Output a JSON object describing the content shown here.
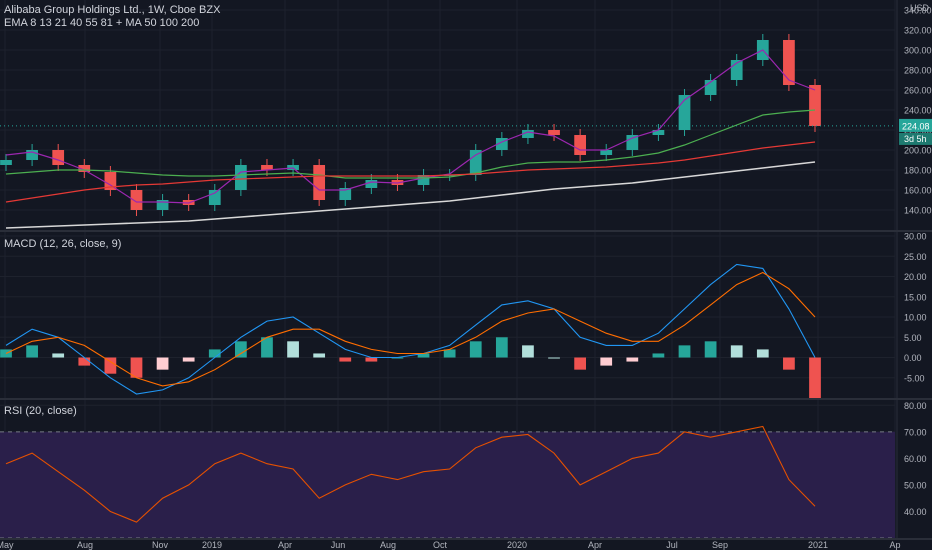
{
  "header": {
    "title": "Alibaba Group Holdings Ltd., 1W, Cboe BZX",
    "indicators": "EMA 8 13 21 40 55 81 + MA 50 100 200",
    "currency": "USD"
  },
  "price_tag": {
    "label": "224.08",
    "countdown": "3d 5h"
  },
  "panes": {
    "macd_label": "MACD (12, 26, close, 9)",
    "rsi_label": "RSI (20, close)"
  },
  "colors": {
    "background": "#131722",
    "grid": "#1e222d",
    "up": "#26a69a",
    "down": "#ef5350",
    "ema_purple": "#9c27b0",
    "ema_black": "#0b0b0b",
    "ma50_green": "#4caf50",
    "ma100_red": "#e53935",
    "ma200_white": "#d8d8d8",
    "macd_blue": "#2196f3",
    "signal_orange": "#ff6d00",
    "rsi_orange": "#e65100",
    "rsi_band": "#2a1f4a",
    "price_tag": "#26a69a"
  },
  "chart_data": [
    {
      "type": "candlestick",
      "title": "Alibaba Group Holdings Ltd., 1W, Cboe BZX",
      "ylabel": "USD",
      "ylim": [
        120,
        350
      ],
      "y_ticks": [
        140,
        160,
        180,
        200,
        220,
        240,
        260,
        280,
        300,
        320,
        340
      ],
      "x_ticks": [
        "May",
        "Aug",
        "Nov",
        "2019",
        "Apr",
        "Jun",
        "Aug",
        "Oct",
        "2020",
        "Apr",
        "Jul",
        "Sep",
        "2021",
        "Ap"
      ],
      "last_price": 224.08,
      "series": [
        {
          "name": "Close",
          "x": [
            "2018-05",
            "2018-06",
            "2018-07",
            "2018-08",
            "2018-09",
            "2018-10",
            "2018-11",
            "2018-12",
            "2019-01",
            "2019-02",
            "2019-03",
            "2019-04",
            "2019-05",
            "2019-06",
            "2019-07",
            "2019-08",
            "2019-09",
            "2019-10",
            "2019-11",
            "2019-12",
            "2020-01",
            "2020-02",
            "2020-03",
            "2020-04",
            "2020-05",
            "2020-06",
            "2020-07",
            "2020-08",
            "2020-09",
            "2020-10",
            "2020-11",
            "2020-12"
          ],
          "values": [
            190,
            200,
            185,
            178,
            160,
            140,
            150,
            145,
            160,
            185,
            180,
            185,
            150,
            162,
            170,
            165,
            175,
            175,
            200,
            212,
            220,
            215,
            195,
            200,
            215,
            220,
            255,
            270,
            290,
            310,
            265,
            224
          ]
        }
      ],
      "moving_averages": [
        {
          "name": "EMA 8",
          "values": [
            195,
            198,
            190,
            180,
            165,
            148,
            148,
            147,
            157,
            178,
            180,
            182,
            160,
            160,
            168,
            167,
            172,
            176,
            195,
            208,
            218,
            214,
            200,
            200,
            212,
            220,
            250,
            268,
            287,
            300,
            270,
            260
          ]
        },
        {
          "name": "MA 50",
          "values": [
            176,
            178,
            180,
            180,
            179,
            177,
            175,
            174,
            174,
            175,
            176,
            177,
            175,
            172,
            172,
            172,
            172,
            173,
            177,
            183,
            187,
            188,
            188,
            190,
            193,
            197,
            205,
            215,
            225,
            235,
            238,
            240
          ]
        },
        {
          "name": "MA 100",
          "values": [
            148,
            152,
            156,
            160,
            163,
            165,
            166,
            168,
            170,
            171,
            172,
            173,
            174,
            174,
            174,
            174,
            174,
            175,
            176,
            178,
            180,
            181,
            182,
            183,
            185,
            187,
            190,
            194,
            198,
            202,
            205,
            208
          ]
        },
        {
          "name": "MA 200",
          "values": [
            122,
            123,
            124,
            125,
            126,
            127,
            128,
            129,
            131,
            133,
            135,
            137,
            139,
            141,
            143,
            145,
            147,
            149,
            152,
            155,
            158,
            161,
            163,
            165,
            167,
            170,
            173,
            176,
            179,
            182,
            185,
            188
          ]
        }
      ]
    },
    {
      "type": "bar",
      "title": "MACD (12, 26, close, 9)",
      "ylim": [
        -10,
        31
      ],
      "y_ticks": [
        -5,
        0,
        5,
        10,
        15,
        20,
        25,
        30
      ],
      "series": [
        {
          "name": "Histogram",
          "values": [
            2,
            3,
            1,
            -2,
            -4,
            -5,
            -3,
            -1,
            2,
            4,
            5,
            4,
            1,
            -1,
            -1,
            0,
            1,
            2,
            4,
            5,
            3,
            0,
            -3,
            -2,
            -1,
            1,
            3,
            4,
            3,
            2,
            -3,
            -10
          ]
        },
        {
          "name": "MACD",
          "values": [
            3,
            7,
            5,
            0,
            -5,
            -9,
            -8,
            -5,
            0,
            5,
            9,
            10,
            6,
            2,
            0,
            0,
            1,
            3,
            8,
            13,
            14,
            12,
            5,
            3,
            3,
            6,
            12,
            18,
            23,
            22,
            12,
            0
          ]
        },
        {
          "name": "Signal",
          "values": [
            1,
            4,
            5,
            3,
            -1,
            -5,
            -7,
            -6,
            -3,
            1,
            5,
            7,
            7,
            4,
            2,
            1,
            1,
            2,
            5,
            9,
            11,
            12,
            9,
            6,
            4,
            4,
            8,
            13,
            18,
            21,
            17,
            10
          ]
        }
      ]
    },
    {
      "type": "line",
      "title": "RSI (20, close)",
      "ylim": [
        30,
        82
      ],
      "y_ticks": [
        40,
        50,
        60,
        70,
        80
      ],
      "bands": [
        30,
        70
      ],
      "series": [
        {
          "name": "RSI",
          "values": [
            58,
            62,
            55,
            48,
            40,
            36,
            45,
            50,
            58,
            62,
            58,
            56,
            45,
            50,
            54,
            52,
            55,
            56,
            64,
            68,
            69,
            62,
            50,
            55,
            60,
            62,
            70,
            68,
            70,
            72,
            52,
            42
          ]
        }
      ]
    }
  ]
}
